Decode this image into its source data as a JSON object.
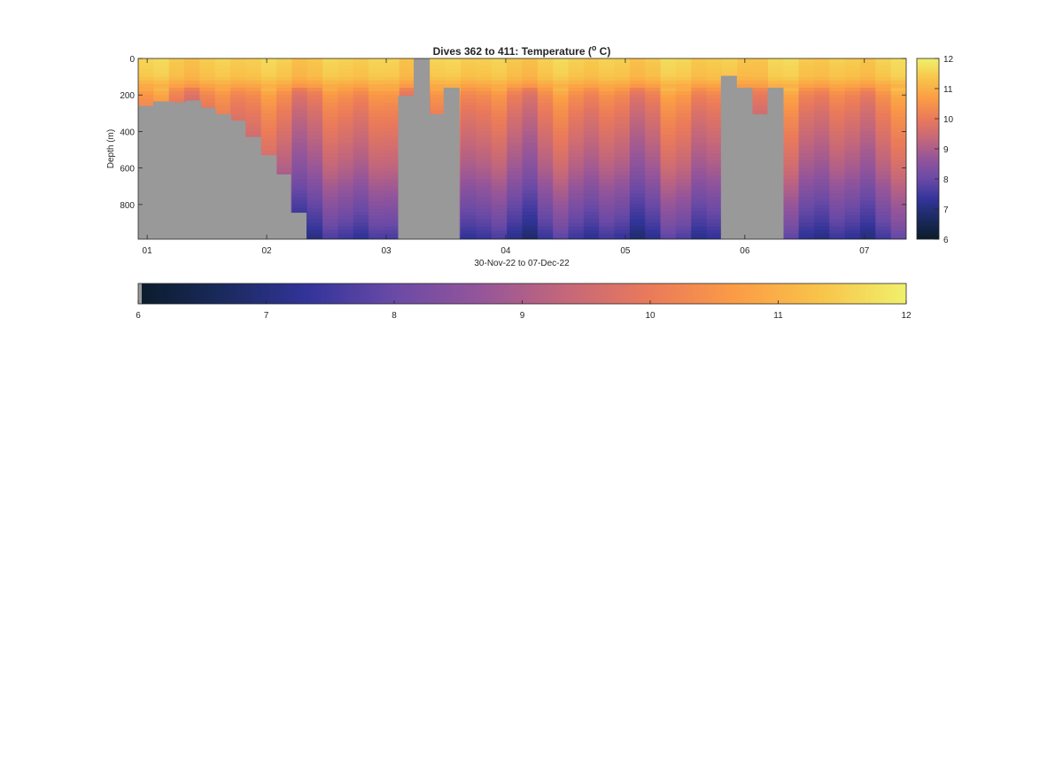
{
  "chart_data": {
    "type": "heatmap",
    "title_main": "Dives 362 to 411: Temperature (",
    "title_unit_sup": "o",
    "title_unit_end": " C)",
    "xlabel": "30-Nov-22 to 07-Dec-22",
    "ylabel": "Depth (m)",
    "x_tick_labels": [
      "01",
      "02",
      "03",
      "04",
      "05",
      "06",
      "07"
    ],
    "x_ticks_days_from_30Nov": [
      1,
      2,
      3,
      4,
      5,
      6,
      7
    ],
    "xlim_days_from_30Nov": [
      0.925,
      7.35
    ],
    "ylim": [
      0,
      990
    ],
    "y_reversed": true,
    "y_ticks": [
      0,
      200,
      400,
      600,
      800
    ],
    "y_tick_labels": [
      "0",
      "200",
      "400",
      "600",
      "800"
    ],
    "colorbar_ticks": [
      6,
      7,
      8,
      9,
      10,
      11,
      12
    ],
    "colorbar_tick_labels": [
      "6",
      "7",
      "8",
      "9",
      "10",
      "11",
      "12"
    ],
    "clim": [
      6,
      12
    ],
    "colormap": [
      "#0b1c2b",
      "#1a2a5e",
      "#33349a",
      "#6a4aa6",
      "#94559a",
      "#c4677a",
      "#ea7a5a",
      "#fb9c45",
      "#f8c44a",
      "#f0f06c"
    ],
    "no_data_color": "#999999",
    "n_dives": 50,
    "profile_temperature_model": {
      "depths_m": [
        0,
        100,
        150,
        200,
        300,
        400,
        500,
        600,
        700,
        800,
        900,
        990
      ],
      "temperature_C": [
        11.5,
        11.3,
        10.8,
        10.3,
        9.9,
        9.6,
        9.3,
        9.0,
        8.6,
        8.2,
        7.8,
        7.3
      ]
    },
    "no_data_regions_max_depth_m": [
      {
        "day_from": 0.925,
        "day_to": 1.05,
        "bottom_from_m": 260
      },
      {
        "day_from": 1.05,
        "day_to": 1.2,
        "bottom_from_m": 235
      },
      {
        "day_from": 1.2,
        "day_to": 1.32,
        "bottom_from_m": 240
      },
      {
        "day_from": 1.32,
        "day_to": 1.45,
        "bottom_from_m": 230
      },
      {
        "day_from": 1.45,
        "day_to": 1.57,
        "bottom_from_m": 270
      },
      {
        "day_from": 1.57,
        "day_to": 1.7,
        "bottom_from_m": 305
      },
      {
        "day_from": 1.7,
        "day_to": 1.82,
        "bottom_from_m": 340
      },
      {
        "day_from": 1.82,
        "day_to": 1.95,
        "bottom_from_m": 430
      },
      {
        "day_from": 1.95,
        "day_to": 2.08,
        "bottom_from_m": 530
      },
      {
        "day_from": 2.08,
        "day_to": 2.2,
        "bottom_from_m": 635
      },
      {
        "day_from": 2.2,
        "day_to": 2.33,
        "bottom_from_m": 845
      },
      {
        "day_from": 3.1,
        "day_to": 3.23,
        "bottom_from_m": 205
      },
      {
        "day_from": 3.23,
        "day_to": 3.36,
        "bottom_from_m": 0
      },
      {
        "day_from": 3.36,
        "day_to": 3.48,
        "bottom_from_m": 305
      },
      {
        "day_from": 3.48,
        "day_to": 3.61,
        "bottom_from_m": 160
      },
      {
        "day_from": 5.8,
        "day_to": 5.93,
        "bottom_from_m": 95
      },
      {
        "day_from": 5.93,
        "day_to": 6.06,
        "bottom_from_m": 160
      },
      {
        "day_from": 6.06,
        "day_to": 6.19,
        "bottom_from_m": 305
      },
      {
        "day_from": 6.19,
        "day_to": 6.32,
        "bottom_from_m": 160
      }
    ]
  }
}
